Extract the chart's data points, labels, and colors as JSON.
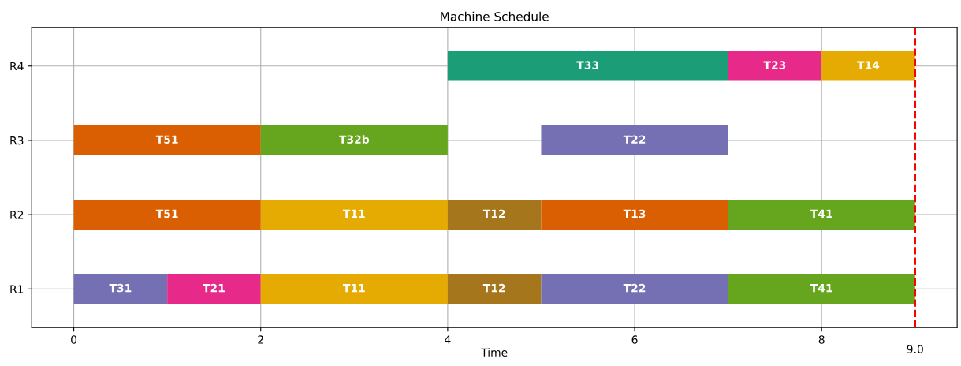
{
  "chart_data": {
    "type": "bar",
    "orientation": "horizontal",
    "title": "Machine Schedule",
    "xlabel": "Time",
    "categories": [
      "R4",
      "R3",
      "R2",
      "R1"
    ],
    "series": [
      {
        "values": [
          3,
          2,
          2,
          1
        ],
        "base": [
          4,
          0,
          0,
          0
        ],
        "colors": [
          "#1b9e77",
          "#d95f02",
          "#d95f02",
          "#7570b3"
        ],
        "value_labels": [
          "T33",
          "T51",
          "T51",
          "T31"
        ]
      },
      {
        "values": [
          1,
          2,
          2,
          1
        ],
        "base": [
          7,
          2,
          2,
          1
        ],
        "colors": [
          "#e7298a",
          "#66a61e",
          "#e6ab02",
          "#e7298a"
        ],
        "value_labels": [
          "T23",
          "T32b",
          "T11",
          "T21"
        ]
      },
      {
        "values": [
          1,
          2,
          1,
          2
        ],
        "base": [
          8,
          5,
          4,
          2
        ],
        "colors": [
          "#e6ab02",
          "#7570b3",
          "#a6761d",
          "#e6ab02"
        ],
        "value_labels": [
          "T14",
          "T22",
          "T12",
          "T11"
        ]
      },
      {
        "values": [
          null,
          null,
          2,
          1
        ],
        "base": [
          null,
          null,
          5,
          4
        ],
        "colors": [
          null,
          null,
          "#d95f02",
          "#a6761d"
        ],
        "value_labels": [
          null,
          null,
          "T13",
          "T12"
        ]
      },
      {
        "values": [
          null,
          null,
          2,
          2
        ],
        "base": [
          null,
          null,
          7,
          5
        ],
        "colors": [
          null,
          null,
          "#66a61e",
          "#7570b3"
        ],
        "value_labels": [
          null,
          null,
          "T41",
          "T22"
        ]
      },
      {
        "values": [
          null,
          null,
          null,
          2
        ],
        "base": [
          null,
          null,
          null,
          7
        ],
        "colors": [
          null,
          null,
          null,
          "#66a61e"
        ],
        "value_labels": [
          null,
          null,
          null,
          "T41"
        ]
      }
    ],
    "xlim": [
      -0.45,
      9.45
    ],
    "xticks": [
      0,
      2,
      4,
      6,
      8
    ],
    "grid": true,
    "ref_lines": [
      {
        "axis": "x",
        "value": 9,
        "label": "9.0",
        "color": "#ff0000",
        "line_style": "dashed"
      }
    ]
  }
}
